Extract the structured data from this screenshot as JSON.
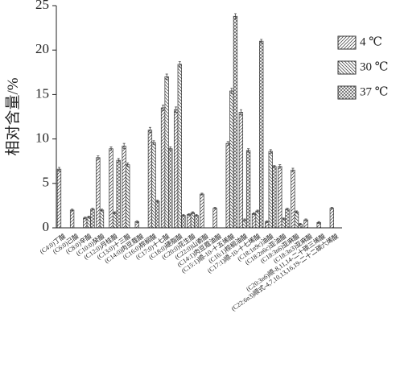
{
  "chart_data": {
    "type": "bar",
    "y_label": "相对含量/%",
    "categories": [
      "(C4:0)丁酸",
      "(C6:0)己酸",
      "(C8:0)辛酸",
      "(C10:0)癸酸",
      "(C12:0)月桂酸",
      "(C13:0)十三酸",
      "(C14:0)肉豆蔻酸",
      "(C16:0)棕榈酸",
      "(C17:0)十七酸",
      "(C18:0)硬脂酸",
      "(C20:0)花生酸",
      "(C22:0)山嵛酸",
      "(C14:1)肉豆蔻油酸",
      "(C15:1)顺-10-十五烯酸",
      "(C16:1)棕榈油酸",
      "(C17:1)顺-10-十七烯酸",
      "(C18:1n9c)油酸",
      "(C18:2n6c)亚油酸",
      "(C18:3n6)亚麻酸",
      "(C18:3n3)亚麻酸",
      "(C20:3n6)顺-8,11,14-二十碳三烯酸",
      "(C22:6n3)顺式-4,7,10,13,16,19-二十二碳六烯酸"
    ],
    "series": [
      {
        "name": "4 ℃",
        "color": "#333333",
        "values": [
          6.6,
          2.0,
          1.1,
          7.9,
          8.9,
          9.2,
          0.7,
          11.0,
          13.5,
          13.3,
          1.5,
          3.8,
          2.2,
          9.5,
          13.0,
          1.6,
          0.7,
          6.9,
          6.5,
          0.9,
          0.6,
          2.2
        ],
        "errors": [
          0.2,
          0.1,
          0.1,
          0.2,
          0.2,
          0.3,
          0.1,
          0.3,
          0.3,
          0.3,
          0.1,
          0.1,
          0.1,
          0.2,
          0.3,
          0.1,
          0.1,
          0.2,
          0.2,
          0.1,
          0.1,
          0.1
        ]
      },
      {
        "name": "30 ℃",
        "color": "#333333",
        "values": [
          null,
          null,
          1.2,
          2.0,
          1.7,
          7.1,
          null,
          9.6,
          17.0,
          18.4,
          1.7,
          null,
          null,
          15.4,
          0.9,
          1.9,
          8.6,
          1.0,
          1.8,
          null,
          null,
          null
        ],
        "errors": [
          null,
          null,
          0.1,
          0.1,
          0.1,
          0.2,
          null,
          0.2,
          0.3,
          0.3,
          0.1,
          null,
          null,
          0.3,
          0.1,
          0.1,
          0.2,
          0.1,
          0.1,
          null,
          null,
          null
        ]
      },
      {
        "name": "37 ℃",
        "color": "#333333",
        "values": [
          null,
          null,
          2.1,
          null,
          7.6,
          null,
          null,
          3.0,
          8.9,
          1.4,
          1.4,
          null,
          null,
          23.8,
          8.7,
          21.0,
          6.9,
          2.1,
          0.4,
          null,
          null,
          null
        ],
        "errors": [
          null,
          null,
          0.1,
          null,
          0.2,
          null,
          null,
          0.1,
          0.2,
          0.1,
          0.1,
          null,
          null,
          0.3,
          0.2,
          0.2,
          0.1,
          0.1,
          0.1,
          null,
          null,
          null
        ]
      }
    ],
    "ylim": [
      0,
      25
    ],
    "yticks": [
      0,
      5,
      10,
      15,
      20,
      25
    ]
  }
}
